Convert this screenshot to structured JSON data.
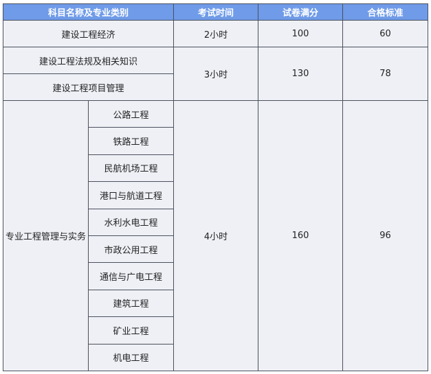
{
  "headers": [
    "科目名称及专业类别",
    "考试时间",
    "试卷满分",
    "合格标准"
  ],
  "rows": [
    {
      "subject": "建设工程经济",
      "time": "2小时",
      "full": "100",
      "pass": "60"
    },
    {
      "subject": "建设工程法规及相关知识",
      "time": "3小时",
      "full": "130",
      "pass": "78"
    },
    {
      "subject": "建设工程项目管理"
    }
  ],
  "practice": {
    "subject": "专业工程管理与实务",
    "time": "4小时",
    "full": "160",
    "pass": "96",
    "categories": [
      "公路工程",
      "铁路工程",
      "民航机场工程",
      "港口与航道工程",
      "水利水电工程",
      "市政公用工程",
      "通信与广电工程",
      "建筑工程",
      "矿业工程",
      "机电工程"
    ]
  },
  "colors": {
    "header_bg": "#6f9be8",
    "cell_bg": "#eef0f5",
    "border": "#4a4f5c"
  }
}
